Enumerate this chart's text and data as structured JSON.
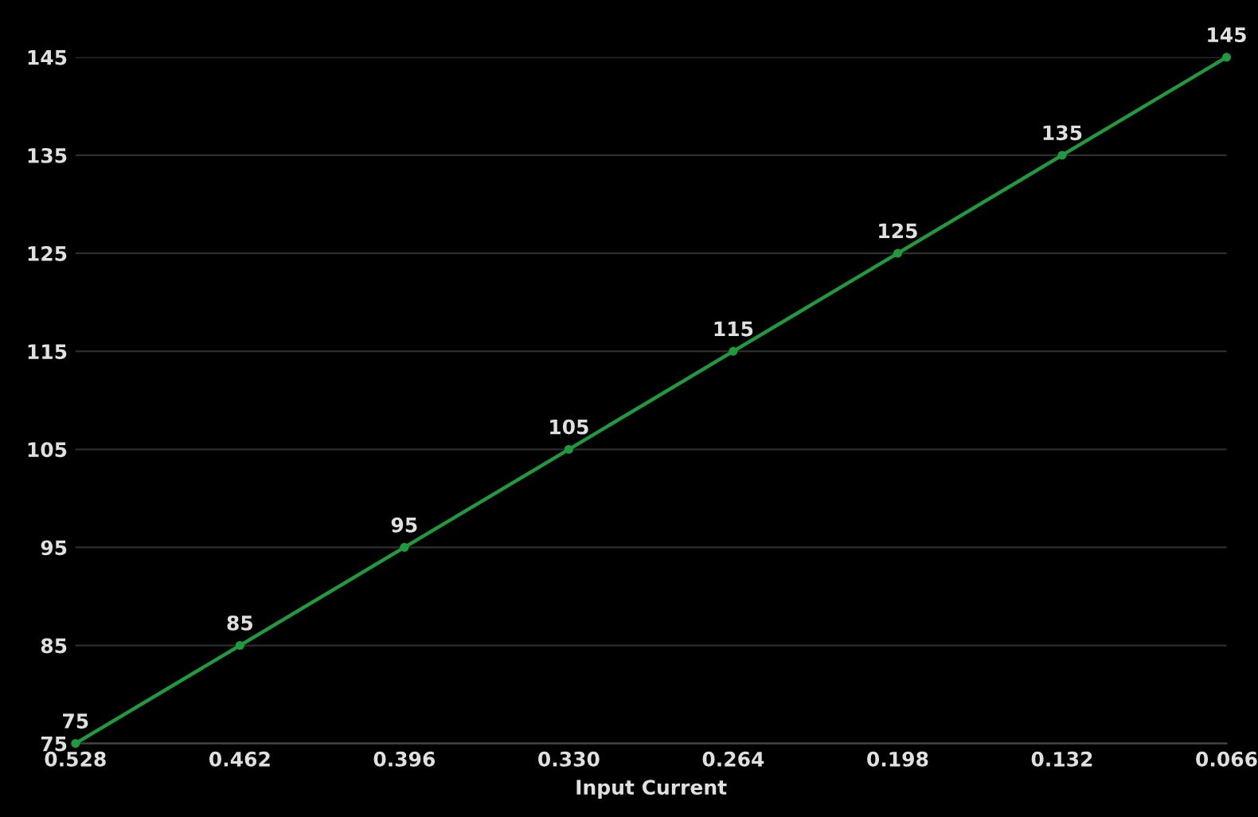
{
  "chart_data": {
    "type": "line",
    "xlabel": "Input Current",
    "categories": [
      "0.528",
      "0.462",
      "0.396",
      "0.330",
      "0.264",
      "0.198",
      "0.132",
      "0.066"
    ],
    "series": [
      {
        "color": "#1f9a3e",
        "values": [
          75,
          85,
          95,
          105,
          115,
          125,
          135,
          145
        ]
      }
    ],
    "ylim": [
      75,
      145
    ],
    "yticks": [
      75,
      85,
      95,
      105,
      115,
      125,
      135,
      145
    ],
    "grid": "y",
    "data_labels": true,
    "marker": "circle",
    "line_style": "solid"
  }
}
